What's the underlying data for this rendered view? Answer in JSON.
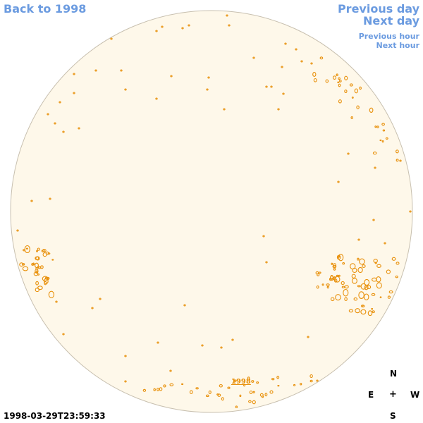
{
  "nav": {
    "back_label": "Back to 1998",
    "prev_day_label": "Previous day",
    "next_day_label": "Next day",
    "prev_hour_label": "Previous hour",
    "next_hour_label": "Next hour"
  },
  "compass": {
    "north": "N",
    "east": "E",
    "center": "+",
    "west": "W",
    "south": "S"
  },
  "timestamp": "1998-03-29T23:59:33",
  "year_label": "1998",
  "colors": {
    "link": "#6b9be0",
    "disk_fill": "#fef8ea",
    "disk_edge": "#c8c0b0",
    "feature": "#e8900a"
  }
}
